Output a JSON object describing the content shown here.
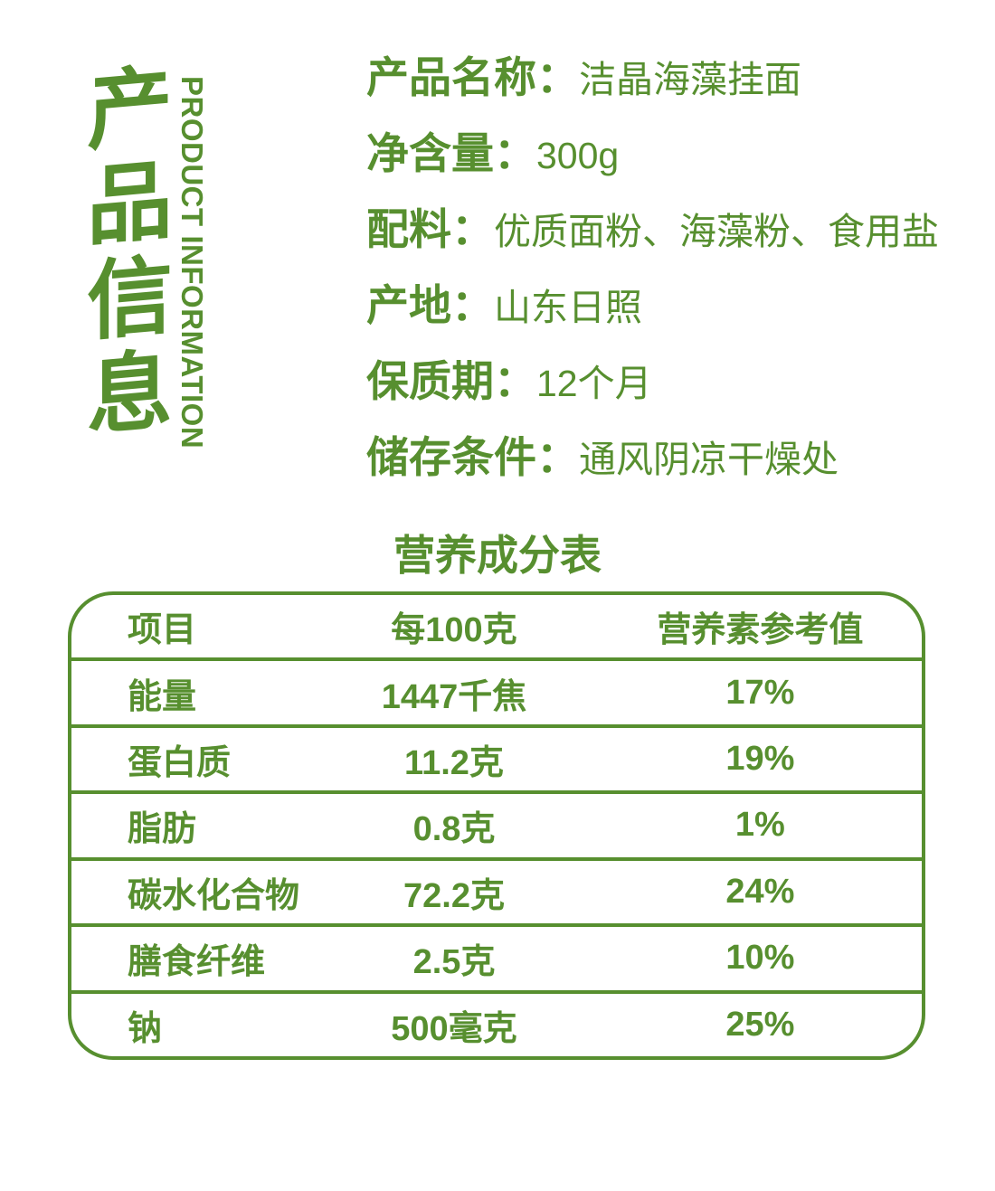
{
  "colors": {
    "green": "#578f2f"
  },
  "banner": {
    "chars": [
      "产",
      "品",
      "信",
      "息"
    ],
    "english": "PRODUCT INFORMATION"
  },
  "details": [
    {
      "label": "产品名称：",
      "value": "洁晶海藻挂面"
    },
    {
      "label": "净含量：",
      "value": "300g"
    },
    {
      "label": "配料：",
      "value": "优质面粉、海藻粉、食用盐"
    },
    {
      "label": "产地：",
      "value": "山东日照"
    },
    {
      "label": "保质期：",
      "value": "12个月"
    },
    {
      "label": "储存条件：",
      "value": "通风阴凉干燥处"
    }
  ],
  "nutrition": {
    "title": "营养成分表",
    "headers": [
      "项目",
      "每100克",
      "营养素参考值"
    ],
    "rows": [
      [
        "能量",
        "1447千焦",
        "17%"
      ],
      [
        "蛋白质",
        "11.2克",
        "19%"
      ],
      [
        "脂肪",
        "0.8克",
        "1%"
      ],
      [
        "碳水化合物",
        "72.2克",
        "24%"
      ],
      [
        "膳食纤维",
        "2.5克",
        "10%"
      ],
      [
        "钠",
        "500毫克",
        "25%"
      ]
    ]
  }
}
